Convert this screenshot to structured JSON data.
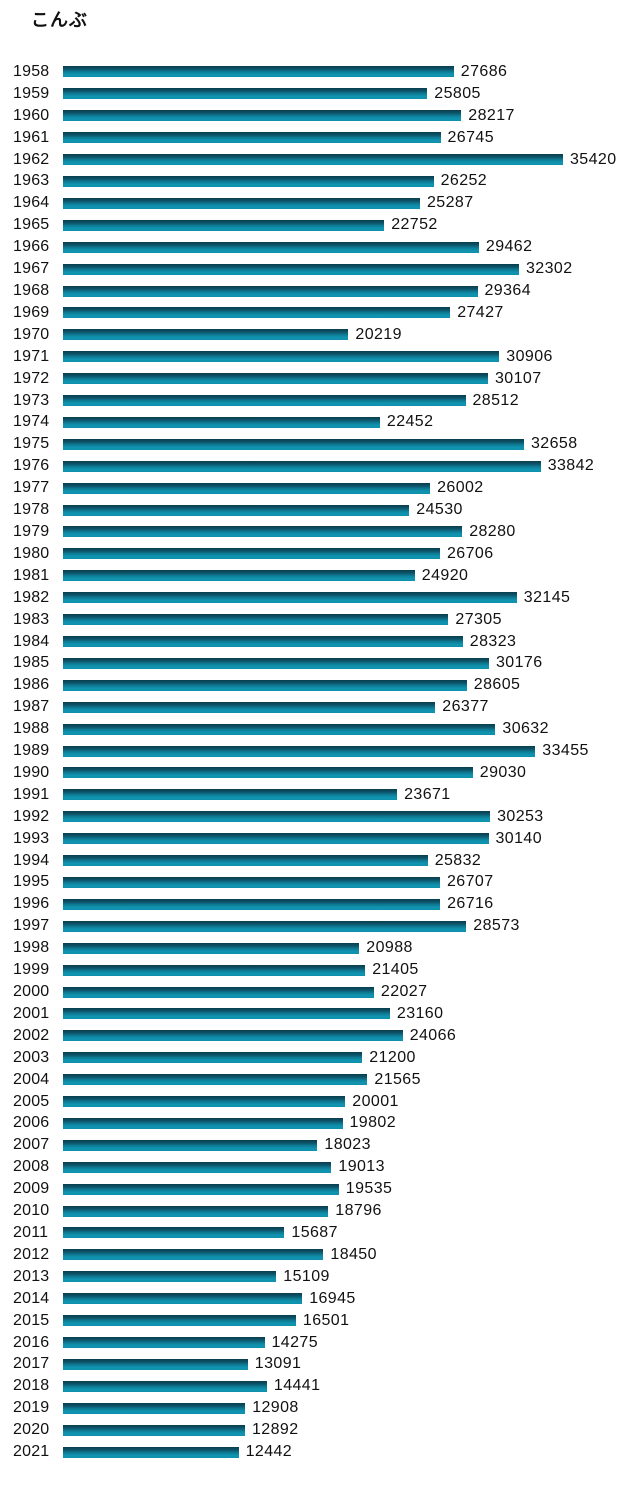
{
  "page": {
    "background": "#ffffff",
    "text_color": "#111111"
  },
  "chart_data": {
    "type": "bar",
    "orientation": "horizontal",
    "title": "こんぶ",
    "categories": [
      "1958",
      "1959",
      "1960",
      "1961",
      "1962",
      "1963",
      "1964",
      "1965",
      "1966",
      "1967",
      "1968",
      "1969",
      "1970",
      "1971",
      "1972",
      "1973",
      "1974",
      "1975",
      "1976",
      "1977",
      "1978",
      "1979",
      "1980",
      "1981",
      "1982",
      "1983",
      "1984",
      "1985",
      "1986",
      "1987",
      "1988",
      "1989",
      "1990",
      "1991",
      "1992",
      "1993",
      "1994",
      "1995",
      "1996",
      "1997",
      "1998",
      "1999",
      "2000",
      "2001",
      "2002",
      "2003",
      "2004",
      "2005",
      "2006",
      "2007",
      "2008",
      "2009",
      "2010",
      "2011",
      "2012",
      "2013",
      "2014",
      "2015",
      "2016",
      "2017",
      "2018",
      "2019",
      "2020",
      "2021"
    ],
    "values": [
      27686,
      25805,
      28217,
      26745,
      35420,
      26252,
      25287,
      22752,
      29462,
      32302,
      29364,
      27427,
      20219,
      30906,
      30107,
      28512,
      22452,
      32658,
      33842,
      26002,
      24530,
      28280,
      26706,
      24920,
      32145,
      27305,
      28323,
      30176,
      28605,
      26377,
      30632,
      33455,
      29030,
      23671,
      30253,
      30140,
      25832,
      26707,
      26716,
      28573,
      20988,
      21405,
      22027,
      23160,
      24066,
      21200,
      21565,
      20001,
      19802,
      18023,
      19013,
      19535,
      18796,
      15687,
      18450,
      15109,
      16945,
      16501,
      14275,
      13091,
      14441,
      12908,
      12892,
      12442
    ],
    "xlim": [
      0,
      35420
    ],
    "grid": false,
    "legend": false,
    "value_labels": true,
    "bar_gradient": [
      "#093d4d",
      "#0c5569",
      "#0e768f",
      "#1095b3",
      "#0f8fa9"
    ],
    "label_color": "#111111"
  }
}
